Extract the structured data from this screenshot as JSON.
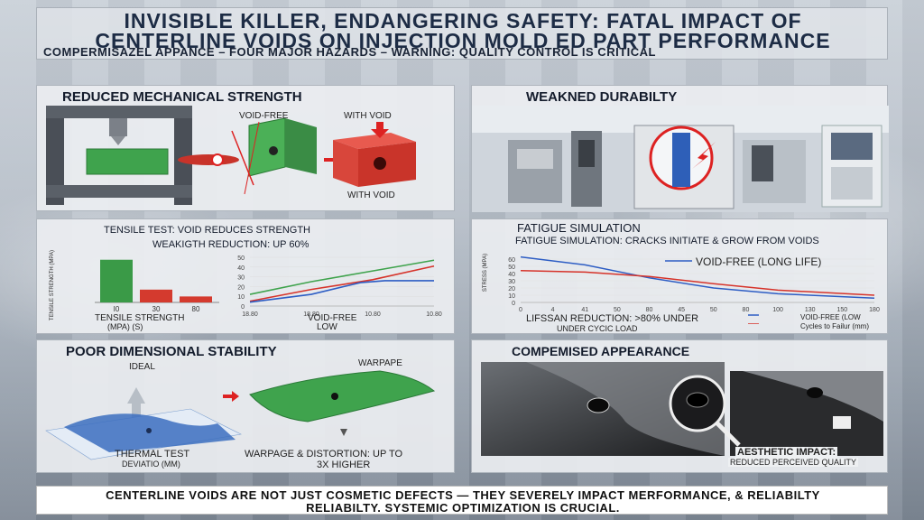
{
  "title": {
    "line1": "INVISIBLE KILLER, ENDANGERING SAFETY: FATAL IMPACT OF",
    "line2": "CENTERLINE VOIDS ON INJECTION MOLD ED PART PERFORMANCE",
    "subtitle": "COMPERMISAZEL APPANCE – FOUR MAJOR HAZARDS – WARNING: QUALITY CONTROL IS CRITICAL"
  },
  "panels": {
    "mech": {
      "title": "REDUCED MECHANICAL STRENGTH",
      "void_free": "VOID-FREE",
      "with_void_top": "WITH VOID",
      "with_void_bottom": "WITH VOID"
    },
    "durability": {
      "title": "WEAKNED DURABILTY"
    },
    "tensile": {
      "title": "TENSILE TEST: VOID REDUCES STRENGTH",
      "subtitle": "WEAKIGTH REDUCTION: UP 60%",
      "ylabel": "TENSILE STRENGTH (MPa)",
      "xlabel": "TENSILE STRENGTH",
      "xunit": "(MPa)    (s)",
      "line_label1": "VOID-FREE",
      "line_label2": "LOW"
    },
    "fatigue": {
      "title": "FATIGUE SIMULATION",
      "subtitle": "FATIGUE SIMULATION: CRACKS INITIATE & GROW FROM VOIDS",
      "annotation": "VOID-FREE (LONG LIFE)",
      "ylabel": "STRESS (MPa)",
      "note1": "LIFSSAN REDUCTION: >80% UNDER",
      "note2": "UNDER CYCIC LOAD",
      "legend1": "VOID-FREE (LOW",
      "legend2": "Cycles to Failur (mm)"
    },
    "dimension": {
      "title": "POOR DIMENSIONAL STABILITY",
      "ideal": "IDEAL",
      "warpage": "WARPAPE",
      "thermal1": "THERMAL TEST",
      "thermal2": "DEVIATIO (mm)",
      "warp_note1": "WARPAGE & DISTORTION: UP TO",
      "warp_note2": "3X HIGHER"
    },
    "appearance": {
      "title": "COMPEMISED APPEARANCE",
      "impact1": "AESTHETIC IMPACT:",
      "impact2": "REDUCED PERCEIVED QUALITY"
    }
  },
  "footer": {
    "line1": "CENTERLINE VOIDS ARE NOT JUST COSMETIC DEFECTS — THEY SEVERELY IMPACT MERFORMANCE, & RELIABILTY",
    "line2": "RELIABILTY. SYSTEMIC OPTIMIZATION IS CRUCIAL."
  },
  "chart_data": [
    {
      "type": "bar",
      "title": "TENSILE TEST: VOID REDUCES STRENGTH",
      "categories": [
        "I0",
        "30",
        "80"
      ],
      "values": [
        100,
        30,
        14
      ],
      "colors": [
        "#3a9a47",
        "#d43a2e",
        "#d43a2e"
      ],
      "ylim": [
        0,
        110
      ]
    },
    {
      "type": "line",
      "x_tick_labels": [
        "18.80",
        "18.80",
        "10.80",
        "10.80"
      ],
      "y_ticks": [
        "0",
        "10",
        "20",
        "30",
        "40",
        "50"
      ],
      "ylim": [
        0,
        50
      ],
      "series": [
        {
          "color": "#3fa34d",
          "x": [
            0,
            1,
            2,
            3
          ],
          "y": [
            12,
            25,
            36,
            47
          ]
        },
        {
          "color": "#d6332a",
          "x": [
            0,
            1,
            2,
            3
          ],
          "y": [
            5,
            17,
            27,
            41
          ]
        },
        {
          "color": "#2d5dc4",
          "x": [
            0,
            1,
            1.8,
            2.2,
            3
          ],
          "y": [
            4,
            12,
            24,
            26,
            26
          ]
        }
      ]
    },
    {
      "type": "line",
      "title": "FATIGUE SIMULATION",
      "x_tick_labels": [
        "0",
        "4",
        "41",
        "50",
        "80",
        "45",
        "50",
        "80",
        "100",
        "130",
        "150",
        "180"
      ],
      "y_ticks": [
        "0",
        "10",
        "20",
        "30",
        "40",
        "50",
        "60"
      ],
      "ylim": [
        0,
        65
      ],
      "series": [
        {
          "color": "#2d5dc4",
          "x": [
            0,
            2,
            4,
            6,
            8,
            11
          ],
          "y": [
            63,
            52,
            34,
            20,
            12,
            6
          ]
        },
        {
          "color": "#d6332a",
          "x": [
            0,
            2,
            4,
            6,
            8,
            11
          ],
          "y": [
            44,
            42,
            36,
            26,
            17,
            10
          ]
        }
      ]
    }
  ]
}
